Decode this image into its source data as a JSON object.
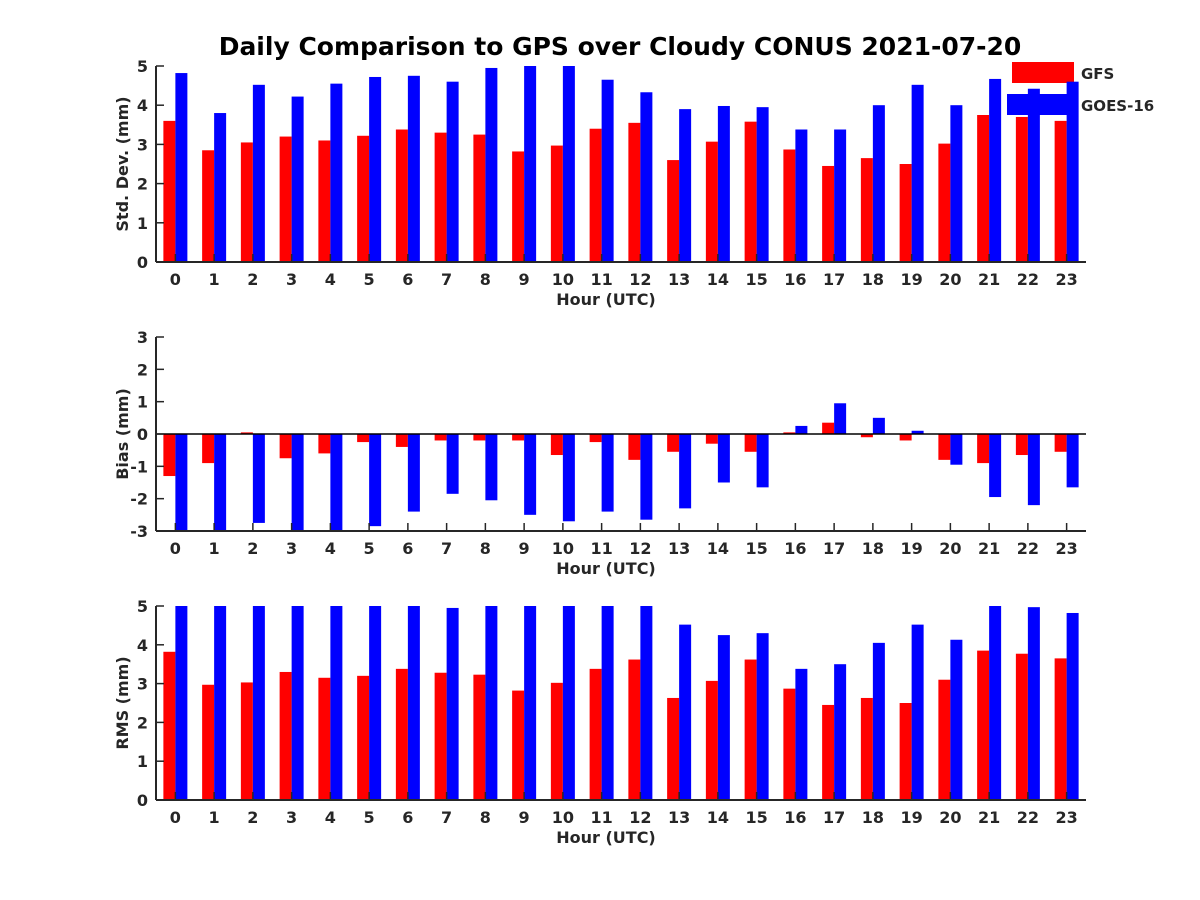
{
  "figure": {
    "title": "Daily Comparison to GPS over Cloudy CONUS 2021-07-20"
  },
  "legend": {
    "items": [
      {
        "label": "GFS",
        "color": "#ff0000"
      },
      {
        "label": "GOES-16",
        "color": "#0000ff"
      }
    ],
    "placement": "top-right"
  },
  "chart_data": [
    {
      "type": "bar",
      "xlabel": "Hour (UTC)",
      "ylabel": "Std. Dev. (mm)",
      "ylim": [
        0,
        5
      ],
      "yticks": [
        0,
        1,
        2,
        3,
        4,
        5
      ],
      "grid": false,
      "categories": [
        "0",
        "1",
        "2",
        "3",
        "4",
        "5",
        "6",
        "7",
        "8",
        "9",
        "10",
        "11",
        "12",
        "13",
        "14",
        "15",
        "16",
        "17",
        "18",
        "19",
        "20",
        "21",
        "22",
        "23"
      ],
      "series": [
        {
          "name": "GFS",
          "color": "#ff0000",
          "values": [
            3.6,
            2.85,
            3.05,
            3.2,
            3.1,
            3.22,
            3.38,
            3.3,
            3.25,
            2.82,
            2.97,
            3.4,
            3.55,
            2.6,
            3.07,
            3.58,
            2.87,
            2.45,
            2.65,
            2.5,
            3.02,
            3.75,
            3.7,
            3.6
          ]
        },
        {
          "name": "GOES-16",
          "color": "#0000ff",
          "values": [
            4.82,
            3.8,
            4.52,
            4.22,
            4.55,
            4.72,
            4.75,
            4.6,
            4.95,
            5.0,
            5.0,
            4.65,
            4.33,
            3.9,
            3.98,
            3.95,
            3.38,
            3.38,
            4.0,
            4.52,
            4.0,
            4.67,
            4.42,
            4.6
          ]
        }
      ]
    },
    {
      "type": "bar",
      "xlabel": "Hour (UTC)",
      "ylabel": "Bias (mm)",
      "ylim": [
        -3,
        3
      ],
      "yticks": [
        -3,
        -2,
        -1,
        0,
        1,
        2,
        3
      ],
      "zero_line": true,
      "grid": false,
      "categories": [
        "0",
        "1",
        "2",
        "3",
        "4",
        "5",
        "6",
        "7",
        "8",
        "9",
        "10",
        "11",
        "12",
        "13",
        "14",
        "15",
        "16",
        "17",
        "18",
        "19",
        "20",
        "21",
        "22",
        "23"
      ],
      "series": [
        {
          "name": "GFS",
          "color": "#ff0000",
          "values": [
            -1.3,
            -0.9,
            0.05,
            -0.75,
            -0.6,
            -0.25,
            -0.4,
            -0.2,
            -0.2,
            -0.2,
            -0.65,
            -0.25,
            -0.8,
            -0.55,
            -0.3,
            -0.55,
            0.05,
            0.35,
            -0.1,
            -0.2,
            -0.8,
            -0.9,
            -0.65,
            -0.55
          ]
        },
        {
          "name": "GOES-16",
          "color": "#0000ff",
          "values": [
            -3.0,
            -3.0,
            -2.75,
            -3.0,
            -3.0,
            -2.85,
            -2.4,
            -1.85,
            -2.05,
            -2.5,
            -2.7,
            -2.4,
            -2.65,
            -2.3,
            -1.5,
            -1.65,
            0.25,
            0.95,
            0.5,
            0.1,
            -0.95,
            -1.95,
            -2.2,
            -1.65
          ]
        }
      ]
    },
    {
      "type": "bar",
      "xlabel": "Hour (UTC)",
      "ylabel": "RMS (mm)",
      "ylim": [
        0,
        5
      ],
      "yticks": [
        0,
        1,
        2,
        3,
        4,
        5
      ],
      "grid": false,
      "categories": [
        "0",
        "1",
        "2",
        "3",
        "4",
        "5",
        "6",
        "7",
        "8",
        "9",
        "10",
        "11",
        "12",
        "13",
        "14",
        "15",
        "16",
        "17",
        "18",
        "19",
        "20",
        "21",
        "22",
        "23"
      ],
      "series": [
        {
          "name": "GFS",
          "color": "#ff0000",
          "values": [
            3.82,
            2.97,
            3.03,
            3.3,
            3.15,
            3.2,
            3.38,
            3.28,
            3.23,
            2.82,
            3.02,
            3.38,
            3.62,
            2.63,
            3.07,
            3.62,
            2.87,
            2.45,
            2.63,
            2.5,
            3.1,
            3.85,
            3.77,
            3.65
          ]
        },
        {
          "name": "GOES-16",
          "color": "#0000ff",
          "values": [
            5.0,
            5.0,
            5.0,
            5.0,
            5.0,
            5.0,
            5.0,
            4.95,
            5.0,
            5.0,
            5.0,
            5.0,
            5.0,
            4.52,
            4.25,
            4.3,
            3.38,
            3.5,
            4.05,
            4.52,
            4.13,
            5.0,
            4.97,
            4.82
          ]
        }
      ]
    }
  ]
}
